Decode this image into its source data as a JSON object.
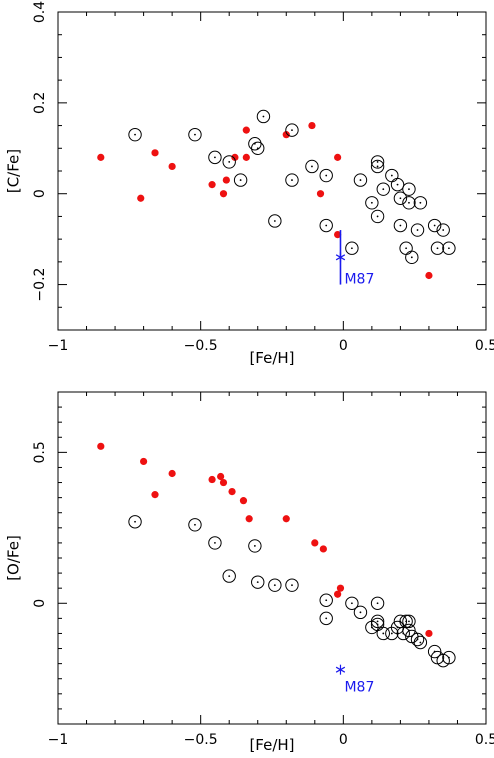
{
  "colors": {
    "filled": "#ee1111",
    "open": "#000000",
    "m87": "#1a1aee"
  },
  "chart_data": [
    {
      "type": "scatter",
      "xlabel": "[Fe/H]",
      "ylabel": "[C/Fe]",
      "xlim": [
        -1,
        0.5
      ],
      "ylim": [
        -0.3,
        0.4
      ],
      "xticks": [
        -1,
        -0.5,
        0,
        0.5
      ],
      "xtick_labels": [
        "−1",
        "−0.5",
        "0",
        "0.5"
      ],
      "yticks": [
        -0.2,
        0,
        0.2,
        0.4
      ],
      "ytick_labels": [
        "−0.2",
        "0",
        "0.2",
        "0.4"
      ],
      "series": [
        {
          "marker": "filled-circle",
          "points": [
            [
              -0.85,
              0.08
            ],
            [
              -0.71,
              -0.01
            ],
            [
              -0.66,
              0.09
            ],
            [
              -0.6,
              0.06
            ],
            [
              -0.46,
              0.02
            ],
            [
              -0.42,
              0.0
            ],
            [
              -0.41,
              0.03
            ],
            [
              -0.38,
              0.08
            ],
            [
              -0.34,
              0.14
            ],
            [
              -0.34,
              0.08
            ],
            [
              -0.2,
              0.13
            ],
            [
              -0.11,
              0.15
            ],
            [
              -0.08,
              0.0
            ],
            [
              -0.02,
              0.08
            ],
            [
              -0.02,
              -0.09
            ],
            [
              0.3,
              -0.18
            ]
          ]
        },
        {
          "marker": "open-circle-dot",
          "points": [
            [
              -0.73,
              0.13
            ],
            [
              -0.52,
              0.13
            ],
            [
              -0.45,
              0.08
            ],
            [
              -0.4,
              0.07
            ],
            [
              -0.36,
              0.03
            ],
            [
              -0.31,
              0.11
            ],
            [
              -0.3,
              0.1
            ],
            [
              -0.28,
              0.17
            ],
            [
              -0.24,
              -0.06
            ],
            [
              -0.18,
              0.14
            ],
            [
              -0.18,
              0.03
            ],
            [
              -0.11,
              0.06
            ],
            [
              -0.06,
              0.04
            ],
            [
              -0.06,
              -0.07
            ],
            [
              0.03,
              -0.12
            ],
            [
              0.06,
              0.03
            ],
            [
              0.1,
              -0.02
            ],
            [
              0.12,
              0.06
            ],
            [
              0.12,
              0.07
            ],
            [
              0.12,
              -0.05
            ],
            [
              0.14,
              0.01
            ],
            [
              0.17,
              0.04
            ],
            [
              0.19,
              0.02
            ],
            [
              0.2,
              -0.01
            ],
            [
              0.2,
              -0.07
            ],
            [
              0.22,
              -0.12
            ],
            [
              0.23,
              -0.02
            ],
            [
              0.23,
              0.01
            ],
            [
              0.24,
              -0.14
            ],
            [
              0.26,
              -0.08
            ],
            [
              0.27,
              -0.02
            ],
            [
              0.32,
              -0.07
            ],
            [
              0.33,
              -0.12
            ],
            [
              0.35,
              -0.08
            ],
            [
              0.37,
              -0.12
            ]
          ]
        }
      ],
      "annotation": {
        "label": "M87",
        "x": -0.01,
        "y": -0.14,
        "err_low": -0.2,
        "err_high": -0.08
      }
    },
    {
      "type": "scatter",
      "xlabel": "[Fe/H]",
      "ylabel": "[O/Fe]",
      "xlim": [
        -1,
        0.5
      ],
      "ylim": [
        -0.4,
        0.7
      ],
      "xticks": [
        -1,
        -0.5,
        0,
        0.5
      ],
      "xtick_labels": [
        "−1",
        "−0.5",
        "0",
        "0.5"
      ],
      "yticks": [
        0,
        0.5
      ],
      "ytick_labels": [
        "0",
        "0.5"
      ],
      "series": [
        {
          "marker": "filled-circle",
          "points": [
            [
              -0.85,
              0.52
            ],
            [
              -0.7,
              0.47
            ],
            [
              -0.66,
              0.36
            ],
            [
              -0.6,
              0.43
            ],
            [
              -0.46,
              0.41
            ],
            [
              -0.43,
              0.42
            ],
            [
              -0.42,
              0.4
            ],
            [
              -0.39,
              0.37
            ],
            [
              -0.35,
              0.34
            ],
            [
              -0.33,
              0.28
            ],
            [
              -0.2,
              0.28
            ],
            [
              -0.1,
              0.2
            ],
            [
              -0.07,
              0.18
            ],
            [
              -0.02,
              0.03
            ],
            [
              -0.01,
              0.05
            ],
            [
              0.3,
              -0.1
            ]
          ]
        },
        {
          "marker": "open-circle-dot",
          "points": [
            [
              -0.73,
              0.27
            ],
            [
              -0.52,
              0.26
            ],
            [
              -0.45,
              0.2
            ],
            [
              -0.4,
              0.09
            ],
            [
              -0.31,
              0.19
            ],
            [
              -0.3,
              0.07
            ],
            [
              -0.24,
              0.06
            ],
            [
              -0.18,
              0.06
            ],
            [
              -0.06,
              0.01
            ],
            [
              -0.06,
              -0.05
            ],
            [
              0.03,
              0.0
            ],
            [
              0.06,
              -0.03
            ],
            [
              0.1,
              -0.08
            ],
            [
              0.12,
              -0.06
            ],
            [
              0.12,
              -0.07
            ],
            [
              0.12,
              0.0
            ],
            [
              0.14,
              -0.1
            ],
            [
              0.17,
              -0.1
            ],
            [
              0.19,
              -0.08
            ],
            [
              0.2,
              -0.06
            ],
            [
              0.21,
              -0.1
            ],
            [
              0.22,
              -0.06
            ],
            [
              0.23,
              -0.09
            ],
            [
              0.23,
              -0.06
            ],
            [
              0.24,
              -0.11
            ],
            [
              0.26,
              -0.12
            ],
            [
              0.27,
              -0.13
            ],
            [
              0.32,
              -0.16
            ],
            [
              0.33,
              -0.18
            ],
            [
              0.35,
              -0.19
            ],
            [
              0.37,
              -0.18
            ]
          ]
        }
      ],
      "annotation": {
        "label": "M87",
        "x": -0.01,
        "y": -0.22
      }
    }
  ]
}
